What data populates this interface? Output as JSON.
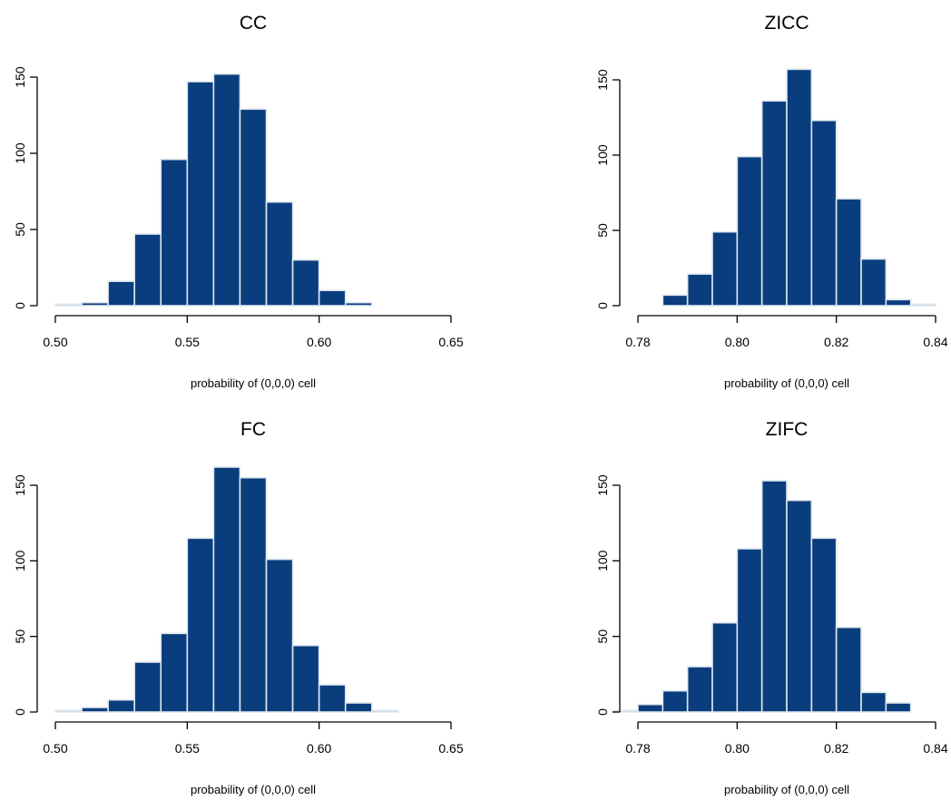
{
  "colors": {
    "bar_fill": "#0a3d7d",
    "bar_edge": "#dfe7ef",
    "axis": "#000000"
  },
  "chart_data": [
    {
      "type": "bar",
      "title": "CC",
      "xlabel": "probability of (0,0,0) cell",
      "ylabel": "",
      "xlim": [
        0.5,
        0.65
      ],
      "ylim": [
        0,
        150
      ],
      "x_ticks": [
        "0.50",
        "0.55",
        "0.60",
        "0.65"
      ],
      "y_ticks": [
        "0",
        "50",
        "100",
        "150"
      ],
      "bin_width": 0.01,
      "bin_starts": [
        0.5,
        0.51,
        0.52,
        0.53,
        0.54,
        0.55,
        0.56,
        0.57,
        0.58,
        0.59,
        0.6,
        0.61
      ],
      "values": [
        1,
        2,
        16,
        47,
        96,
        147,
        152,
        129,
        68,
        30,
        10,
        2
      ],
      "grid": false
    },
    {
      "type": "bar",
      "title": "ZICC",
      "xlabel": "probability of (0,0,0) cell",
      "ylabel": "",
      "xlim": [
        0.78,
        0.84
      ],
      "ylim": [
        0,
        150
      ],
      "x_ticks": [
        "0.78",
        "0.80",
        "0.82",
        "0.84"
      ],
      "y_ticks": [
        "0",
        "50",
        "100",
        "150"
      ],
      "bin_width": 0.005,
      "bin_starts": [
        0.785,
        0.79,
        0.795,
        0.8,
        0.805,
        0.81,
        0.815,
        0.82,
        0.825,
        0.83,
        0.835
      ],
      "values": [
        7,
        21,
        49,
        99,
        136,
        157,
        123,
        71,
        31,
        4,
        1
      ],
      "grid": false
    },
    {
      "type": "bar",
      "title": "FC",
      "xlabel": "probability of (0,0,0) cell",
      "ylabel": "",
      "xlim": [
        0.5,
        0.65
      ],
      "ylim": [
        0,
        150
      ],
      "x_ticks": [
        "0.50",
        "0.55",
        "0.60",
        "0.65"
      ],
      "y_ticks": [
        "0",
        "50",
        "100",
        "150"
      ],
      "bin_width": 0.01,
      "bin_starts": [
        0.5,
        0.51,
        0.52,
        0.53,
        0.54,
        0.55,
        0.56,
        0.57,
        0.58,
        0.59,
        0.6,
        0.61,
        0.62
      ],
      "values": [
        1,
        3,
        8,
        33,
        52,
        115,
        162,
        155,
        101,
        44,
        18,
        6,
        1
      ],
      "grid": false
    },
    {
      "type": "bar",
      "title": "ZIFC",
      "xlabel": "probability of (0,0,0) cell",
      "ylabel": "",
      "xlim": [
        0.78,
        0.84
      ],
      "ylim": [
        0,
        150
      ],
      "x_ticks": [
        "0.78",
        "0.80",
        "0.82",
        "0.84"
      ],
      "y_ticks": [
        "0",
        "50",
        "100",
        "150"
      ],
      "bin_width": 0.005,
      "bin_starts": [
        0.775,
        0.78,
        0.785,
        0.79,
        0.795,
        0.8,
        0.805,
        0.81,
        0.815,
        0.82,
        0.825,
        0.83
      ],
      "values": [
        1,
        5,
        14,
        30,
        59,
        108,
        153,
        140,
        115,
        56,
        13,
        6
      ],
      "grid": false
    }
  ]
}
